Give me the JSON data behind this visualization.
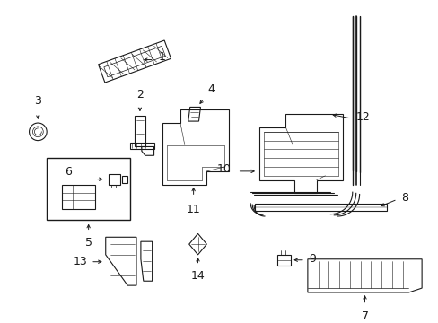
{
  "bg_color": "#ffffff",
  "line_color": "#1a1a1a",
  "fig_width": 4.89,
  "fig_height": 3.6,
  "dpi": 100,
  "lw": 0.8
}
